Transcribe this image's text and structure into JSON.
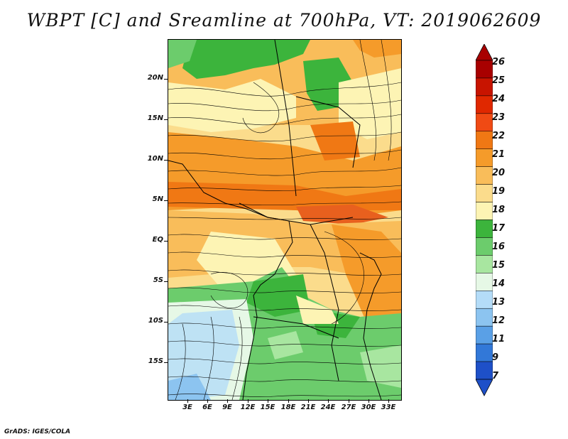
{
  "title": "WBPT [C] and Sreamline at 700hPa, VT: 2019062609",
  "credit": "GrADS: IGES/COLA",
  "lat_labels": [
    "20N",
    "15N",
    "10N",
    "5N",
    "EQ",
    "5S",
    "10S",
    "15S"
  ],
  "lon_labels": [
    "3E",
    "6E",
    "9E",
    "12E",
    "15E",
    "18E",
    "21E",
    "24E",
    "27E",
    "30E",
    "33E"
  ],
  "colorbar": {
    "labels": [
      "26",
      "25",
      "24",
      "23",
      "22",
      "21",
      "20",
      "19",
      "18",
      "17",
      "16",
      "15",
      "14",
      "13",
      "12",
      "11",
      "9",
      "7"
    ],
    "colors": [
      "#a80000",
      "#c81400",
      "#e02800",
      "#f04a14",
      "#f07814",
      "#f59b2a",
      "#f9bd5a",
      "#fbdc8c",
      "#fdf4b4",
      "#3cb43c",
      "#6ccc6c",
      "#a8e6a0",
      "#e6f8e6",
      "#b4dcf8",
      "#8cc4f0",
      "#5aa0e6",
      "#3278d8",
      "#1e50c8"
    ]
  },
  "map": {
    "fill_colors": {
      "green_dark": "#3cb43c",
      "green_mid": "#6ccc6c",
      "green_light": "#a8e6a0",
      "pale": "#e6f8e6",
      "blue_light": "#b4dcf8",
      "yellow": "#fdf4b4",
      "peach": "#fbdc8c",
      "orange_light": "#f9bd5a",
      "orange": "#f59b2a",
      "orange_dark": "#f07814"
    }
  }
}
